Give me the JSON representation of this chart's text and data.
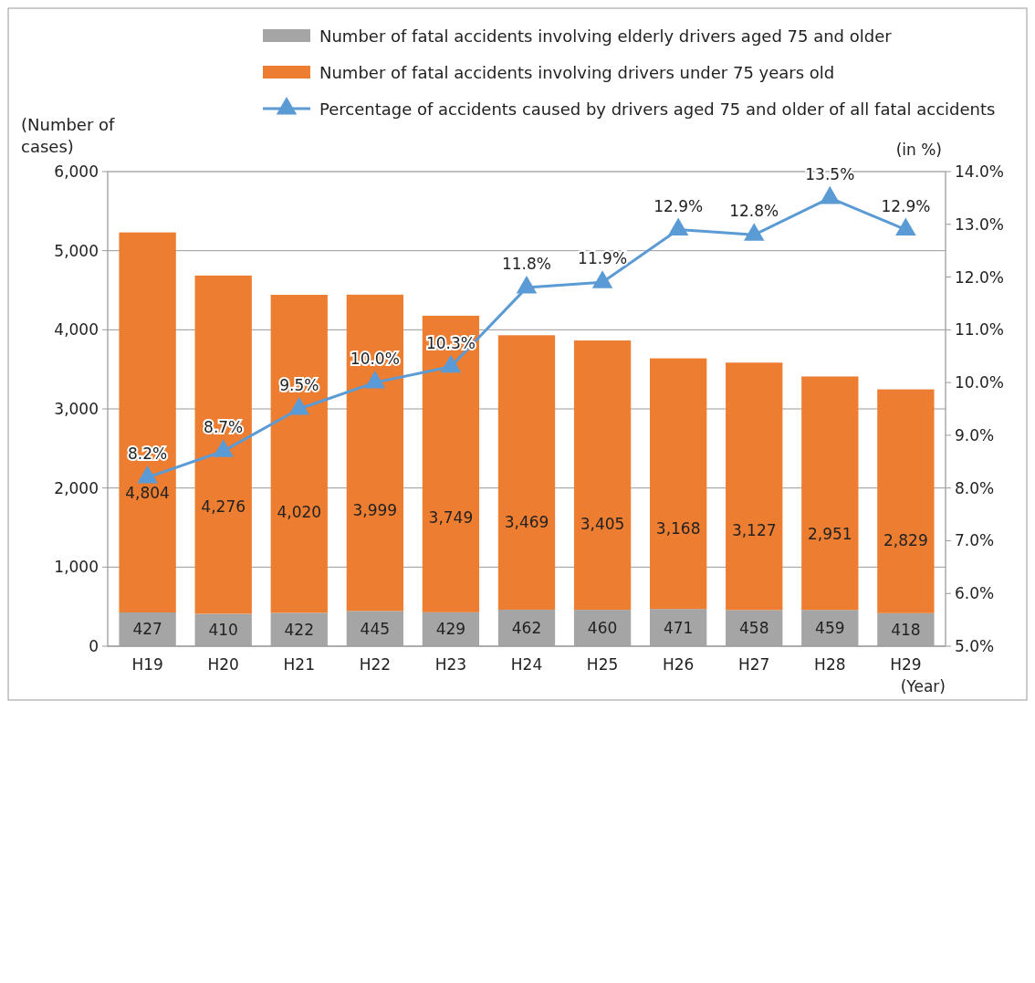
{
  "chart_data": {
    "type": "bar",
    "stacked": true,
    "categories": [
      "H19",
      "H20",
      "H21",
      "H22",
      "H23",
      "H24",
      "H25",
      "H26",
      "H27",
      "H28",
      "H29"
    ],
    "series": [
      {
        "name": "Number of fatal accidents involving elderly drivers aged 75 and older",
        "color": "#a5a5a5",
        "values": [
          427,
          410,
          422,
          445,
          429,
          462,
          460,
          471,
          458,
          459,
          418
        ],
        "value_labels": [
          "427",
          "410",
          "422",
          "445",
          "429",
          "462",
          "460",
          "471",
          "458",
          "459",
          "418"
        ]
      },
      {
        "name": "Number of fatal accidents involving drivers under 75 years old",
        "color": "#ed7d31",
        "values": [
          4804,
          4276,
          4020,
          3999,
          3749,
          3469,
          3405,
          3168,
          3127,
          2951,
          2829
        ],
        "value_labels": [
          "4,804",
          "4,276",
          "4,020",
          "3,999",
          "3,749",
          "3,469",
          "3,405",
          "3,168",
          "3,127",
          "2,951",
          "2,829"
        ]
      },
      {
        "name": "Percentage of accidents caused by drivers aged 75 and older of all fatal accidents",
        "type": "line",
        "axis": "y2",
        "color": "#5b9bd5",
        "marker": "triangle",
        "values": [
          8.2,
          8.7,
          9.5,
          10.0,
          10.3,
          11.8,
          11.9,
          12.9,
          12.8,
          13.5,
          12.9
        ],
        "value_labels": [
          "8.2%",
          "8.7%",
          "9.5%",
          "10.0%",
          "10.3%",
          "11.8%",
          "11.9%",
          "12.9%",
          "12.8%",
          "13.5%",
          "12.9%"
        ]
      }
    ],
    "ylabel": "(Number of cases)",
    "xlabel": "(Year)",
    "annotations": [
      "(in %)"
    ],
    "ylim": [
      0,
      6000
    ],
    "yticks": [
      0,
      {
        "value": 1000,
        "label": "1,000"
      },
      {
        "value": 2000,
        "label": "2,000"
      },
      {
        "value": 3000,
        "label": "3,000"
      },
      {
        "value": 4000,
        "label": "4,000"
      },
      {
        "value": 5000,
        "label": "5,000"
      },
      {
        "value": 6000,
        "label": "6,000"
      }
    ],
    "y2lim": [
      5,
      14
    ],
    "y2ticks": [
      {
        "value": 5,
        "label": "5.0%"
      },
      {
        "value": 6,
        "label": "6.0%"
      },
      {
        "value": 7,
        "label": "7.0%"
      },
      {
        "value": 8,
        "label": "8.0%"
      },
      {
        "value": 9,
        "label": "9.0%"
      },
      {
        "value": 10,
        "label": "10.0%"
      },
      {
        "value": 11,
        "label": "11.0%"
      },
      {
        "value": 12,
        "label": "12.0%"
      },
      {
        "value": 13,
        "label": "13.0%"
      },
      {
        "value": 14,
        "label": "14.0%"
      }
    ],
    "grid": "y",
    "legend": "top"
  }
}
